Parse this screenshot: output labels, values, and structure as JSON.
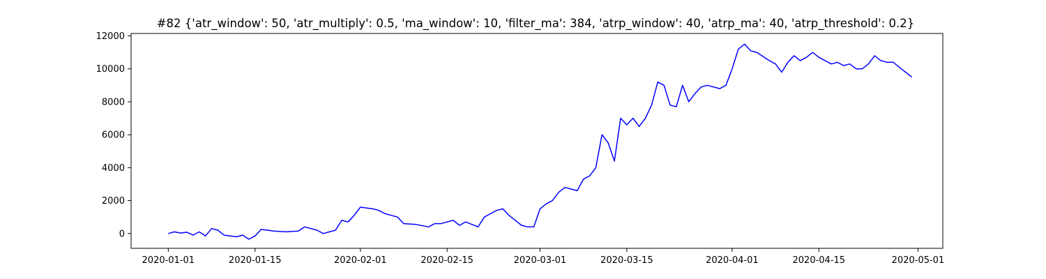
{
  "chart_data": {
    "type": "line",
    "title": "#82 {'atr_window': 50, 'atr_multiply': 0.5, 'ma_window': 10, 'filter_ma': 384, 'atrp_window': 40, 'atrp_ma': 40, 'atrp_threshold': 0.2}",
    "xlabel": "",
    "ylabel": "",
    "x_ticks": [
      "2020-01-01",
      "2020-01-15",
      "2020-02-01",
      "2020-02-15",
      "2020-03-01",
      "2020-03-15",
      "2020-04-01",
      "2020-04-15",
      "2020-05-01"
    ],
    "y_ticks": [
      0,
      2000,
      4000,
      6000,
      8000,
      10000,
      12000
    ],
    "xlim": [
      "2019-12-26",
      "2020-05-05"
    ],
    "ylim": [
      -900,
      12150
    ],
    "grid": false,
    "series": [
      {
        "color": "#0000ff",
        "x": [
          "2020-01-01",
          "2020-01-02",
          "2020-01-03",
          "2020-01-04",
          "2020-01-05",
          "2020-01-06",
          "2020-01-07",
          "2020-01-08",
          "2020-01-09",
          "2020-01-10",
          "2020-01-11",
          "2020-01-12",
          "2020-01-13",
          "2020-01-14",
          "2020-01-15",
          "2020-01-16",
          "2020-01-17",
          "2020-01-18",
          "2020-01-20",
          "2020-01-22",
          "2020-01-23",
          "2020-01-24",
          "2020-01-25",
          "2020-01-26",
          "2020-01-28",
          "2020-01-29",
          "2020-01-30",
          "2020-01-31",
          "2020-02-01",
          "2020-02-03",
          "2020-02-04",
          "2020-02-05",
          "2020-02-06",
          "2020-02-07",
          "2020-02-08",
          "2020-02-10",
          "2020-02-12",
          "2020-02-13",
          "2020-02-14",
          "2020-02-16",
          "2020-02-17",
          "2020-02-18",
          "2020-02-20",
          "2020-02-21",
          "2020-02-22",
          "2020-02-23",
          "2020-02-24",
          "2020-02-25",
          "2020-02-26",
          "2020-02-27",
          "2020-02-28",
          "2020-02-29",
          "2020-03-01",
          "2020-03-02",
          "2020-03-03",
          "2020-03-04",
          "2020-03-05",
          "2020-03-06",
          "2020-03-07",
          "2020-03-08",
          "2020-03-09",
          "2020-03-10",
          "2020-03-11",
          "2020-03-12",
          "2020-03-13",
          "2020-03-14",
          "2020-03-15",
          "2020-03-16",
          "2020-03-17",
          "2020-03-18",
          "2020-03-19",
          "2020-03-20",
          "2020-03-21",
          "2020-03-22",
          "2020-03-23",
          "2020-03-24",
          "2020-03-25",
          "2020-03-26",
          "2020-03-27",
          "2020-03-28",
          "2020-03-30",
          "2020-03-31",
          "2020-04-01",
          "2020-04-02",
          "2020-04-03",
          "2020-04-04",
          "2020-04-05",
          "2020-04-07",
          "2020-04-08",
          "2020-04-09",
          "2020-04-10",
          "2020-04-11",
          "2020-04-12",
          "2020-04-13",
          "2020-04-14",
          "2020-04-15",
          "2020-04-16",
          "2020-04-17",
          "2020-04-18",
          "2020-04-19",
          "2020-04-20",
          "2020-04-21",
          "2020-04-22",
          "2020-04-23",
          "2020-04-24",
          "2020-04-25",
          "2020-04-26",
          "2020-04-27",
          "2020-04-28",
          "2020-04-29",
          "2020-04-30"
        ],
        "values": [
          0,
          100,
          30,
          80,
          -100,
          100,
          -150,
          300,
          200,
          -100,
          -150,
          -200,
          -100,
          -350,
          -150,
          250,
          200,
          150,
          100,
          150,
          400,
          300,
          200,
          0,
          200,
          800,
          700,
          1100,
          1600,
          1500,
          1400,
          1200,
          1100,
          1000,
          600,
          550,
          400,
          600,
          600,
          800,
          500,
          700,
          400,
          1000,
          1200,
          1400,
          1500,
          1100,
          800,
          500,
          400,
          400,
          1500,
          1800,
          2000,
          2500,
          2800,
          2700,
          2600,
          3300,
          3500,
          4000,
          6000,
          5500,
          4400,
          7000,
          6600,
          7000,
          6500,
          7000,
          7800,
          9200,
          9000,
          7800,
          7700,
          9000,
          8000,
          8500,
          8900,
          9000,
          8800,
          9000,
          10000,
          11200,
          11500,
          11100,
          11000,
          10500,
          10300,
          9800,
          10400,
          10800,
          10500,
          10700,
          11000,
          10700,
          10500,
          10300,
          10400,
          10200,
          10300,
          10000,
          10000,
          10300,
          10800,
          10500,
          10400,
          10400,
          10100,
          9800,
          9500
        ]
      }
    ]
  }
}
